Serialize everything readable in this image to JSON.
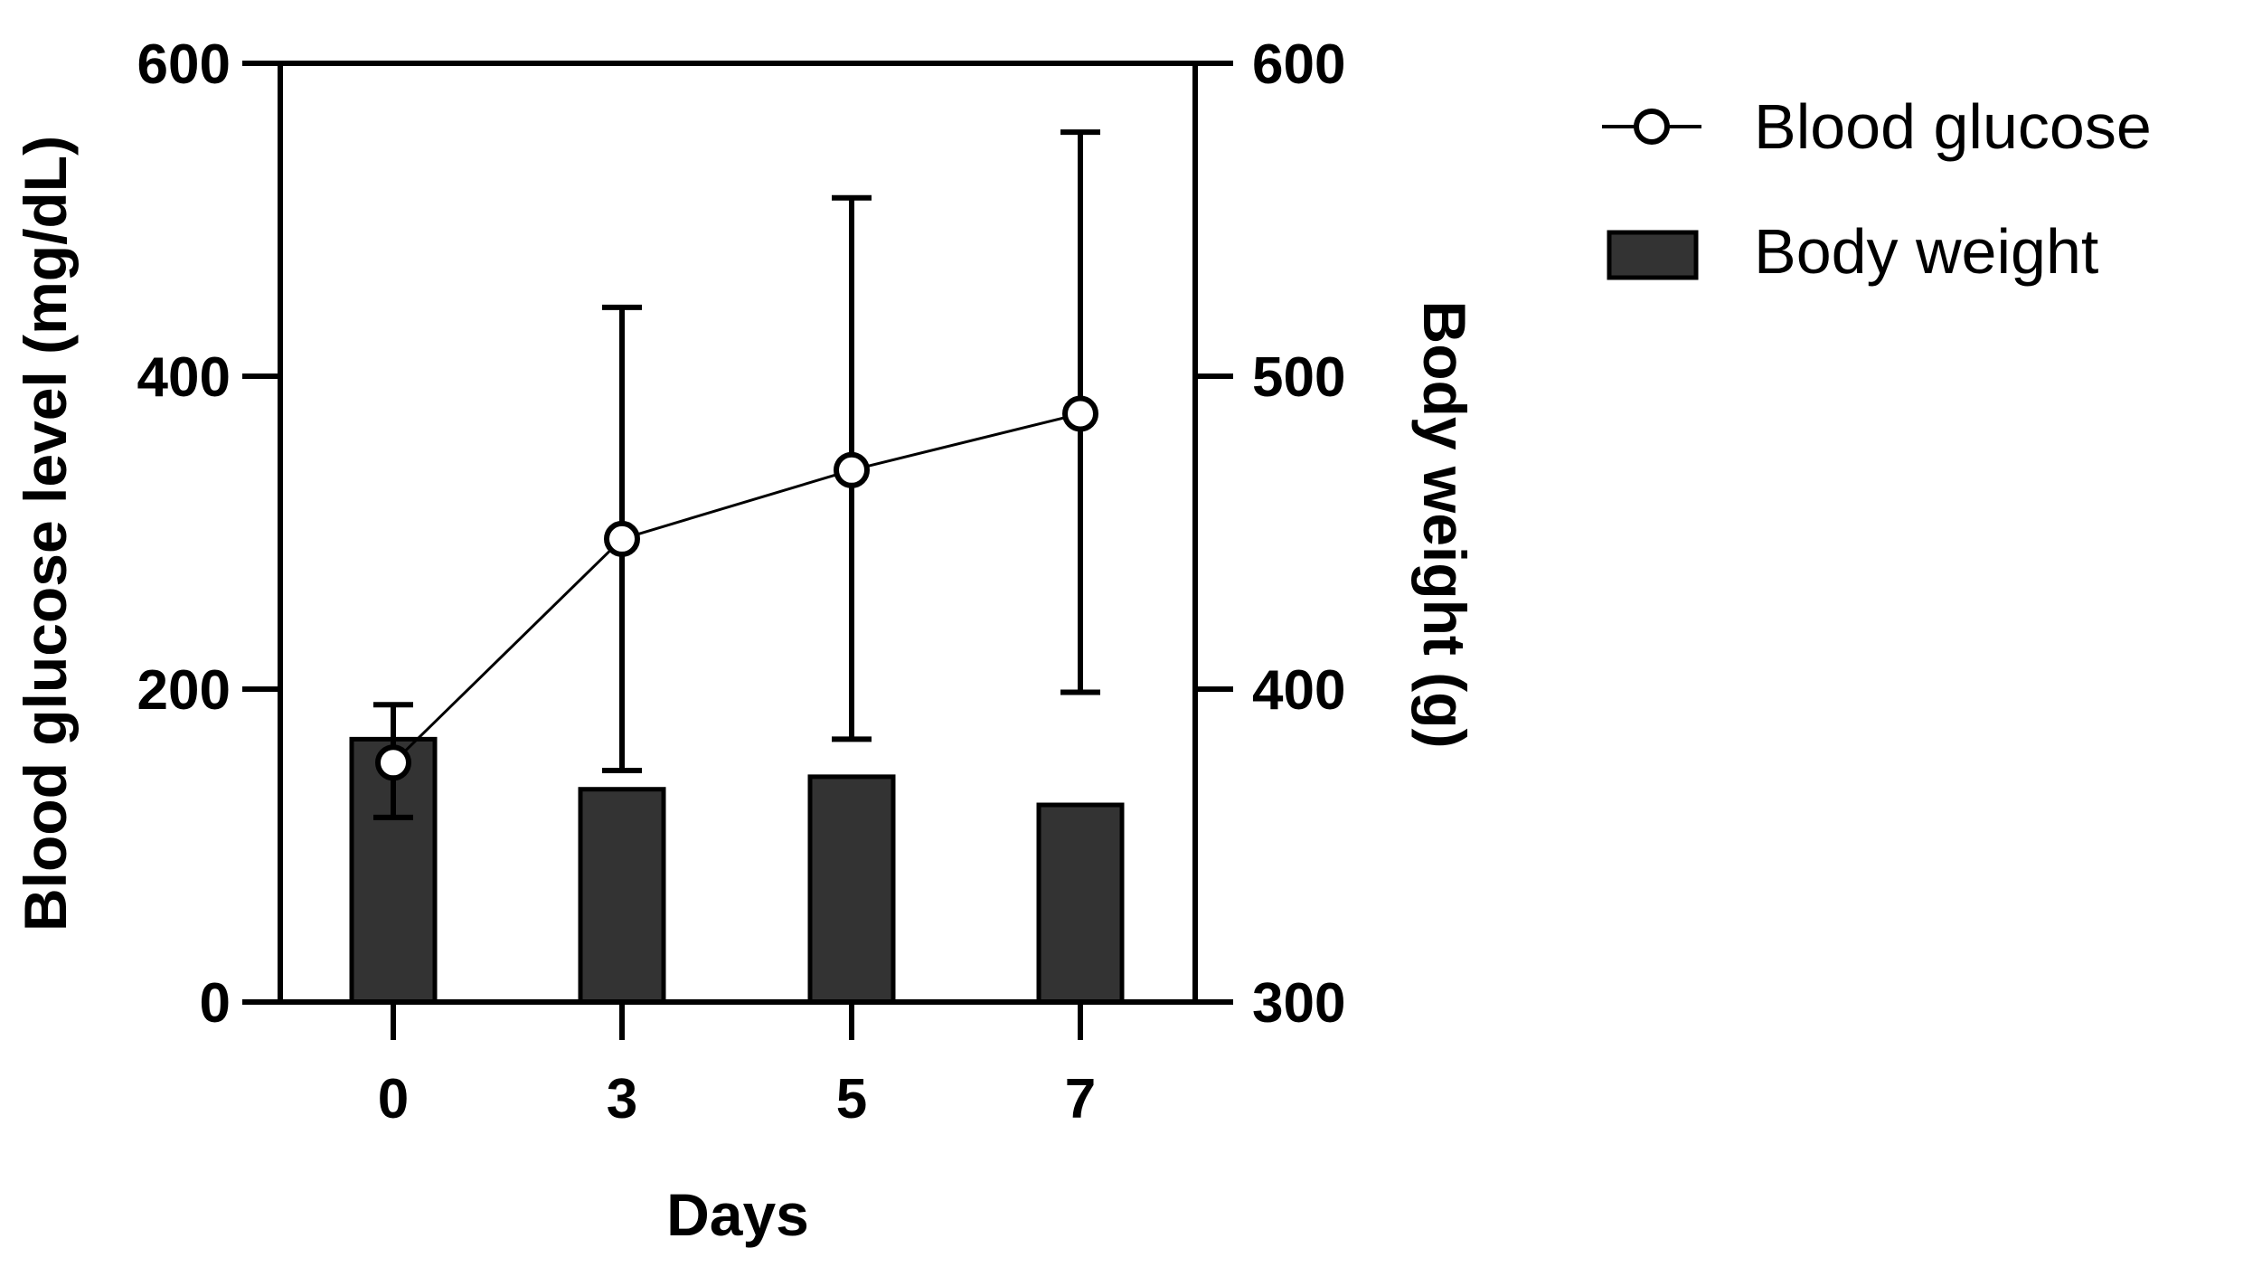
{
  "chart_data": {
    "type": "bar+line",
    "categories": [
      "0",
      "3",
      "5",
      "7"
    ],
    "xlabel": "Days",
    "ylabel_left": "Blood glucose level (mg/dL)",
    "ylabel_right": "Body weight (g)",
    "ylim_left": [
      0,
      600
    ],
    "ylim_right": [
      300,
      600
    ],
    "yticks_left": [
      "0",
      "200",
      "400",
      "600"
    ],
    "yticks_right": [
      "300",
      "400",
      "500",
      "600"
    ],
    "grid": false,
    "legend_position": "top-right",
    "series": [
      {
        "name": "Blood glucose",
        "type": "line",
        "axis": "left",
        "marker": "open-circle",
        "values": [
          153,
          296,
          340,
          376
        ],
        "error_low": [
          118,
          148,
          168,
          198
        ],
        "error_high": [
          190,
          444,
          514,
          556
        ]
      },
      {
        "name": "Body weight",
        "type": "bar",
        "axis": "right",
        "color": "#333333",
        "values": [
          384,
          368,
          372,
          363
        ]
      }
    ]
  }
}
